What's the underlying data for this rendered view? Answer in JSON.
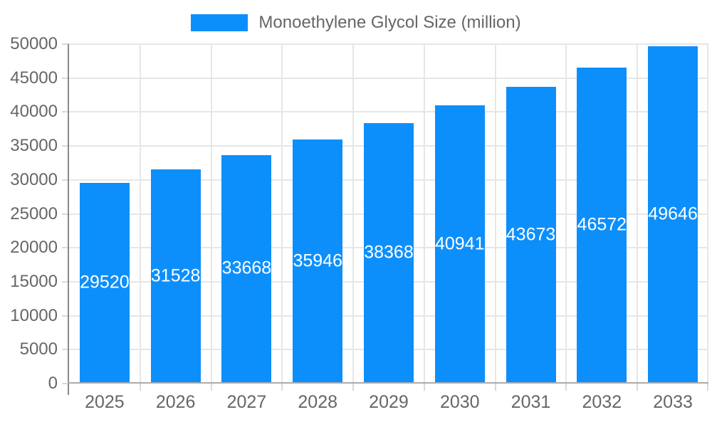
{
  "chart_data": {
    "type": "bar",
    "title": "Monoethylene Glycol Size (million)",
    "categories": [
      "2025",
      "2026",
      "2027",
      "2028",
      "2029",
      "2030",
      "2031",
      "2032",
      "2033"
    ],
    "values": [
      29520,
      31528,
      33668,
      35946,
      38368,
      40941,
      43673,
      46572,
      49646
    ],
    "xlabel": "",
    "ylabel": "",
    "ylim": [
      0,
      50000
    ],
    "ytick_step": 5000,
    "yticks": [
      0,
      5000,
      10000,
      15000,
      20000,
      25000,
      30000,
      35000,
      40000,
      45000,
      50000
    ],
    "grid": true,
    "vertical_grid": true,
    "legend_position": "top",
    "bar_labels_inside": "middle",
    "colors": {
      "bar": "#0D8FFB",
      "bar_label": "#FFFFFF",
      "axis_text": "#666666",
      "grid": "#E6E6E6",
      "y_axis_line": "#8A8A8A",
      "x_axis_line": "#ABABAB",
      "tick": "#D9D9D9",
      "background": "#FFFFFF"
    }
  }
}
